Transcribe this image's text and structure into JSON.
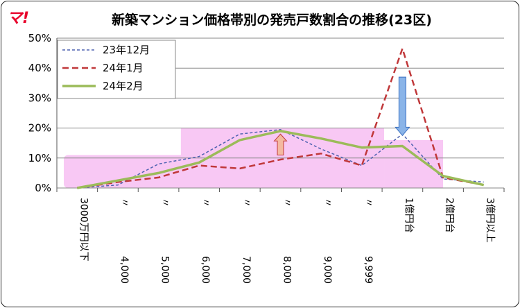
{
  "logo_text": "マ!",
  "chart_data": {
    "type": "line",
    "title": "新築マンション価格帯別の発売戸数割合の推移(23区)",
    "xlabel": "",
    "ylabel": "",
    "categories": [
      "3000万円以下",
      "〃",
      "〃",
      "〃",
      "〃",
      "〃",
      "〃",
      "〃",
      "1億円台",
      "2億円台",
      "3億円以上"
    ],
    "category_values": [
      "",
      "4,000",
      "5,000",
      "6,000",
      "7,000",
      "8,000",
      "9,000",
      "9,999",
      "",
      "",
      ""
    ],
    "ylim": [
      0,
      50
    ],
    "yticks": [
      "0%",
      "10%",
      "20%",
      "30%",
      "40%",
      "50%"
    ],
    "grid": true,
    "legend_position": "top-left",
    "series": [
      {
        "name": "23年12月",
        "color": "#4f62b0",
        "dash": "short",
        "values": [
          0,
          1,
          8,
          10.5,
          18,
          19.5,
          13,
          7.5,
          18,
          3,
          2
        ]
      },
      {
        "name": "24年1月",
        "color": "#c0383a",
        "dash": "long",
        "values": [
          0,
          2,
          3.5,
          7.5,
          6.5,
          9.5,
          11.5,
          7.5,
          46.5,
          3.5,
          1
        ]
      },
      {
        "name": "24年2月",
        "color": "#9bbb59",
        "dash": "solid",
        "values": [
          0,
          2.5,
          5,
          8.5,
          16,
          19,
          16.5,
          13.5,
          14,
          4,
          1
        ]
      }
    ],
    "colors": {
      "highlight": "#f8c8f4",
      "arrow_up": "#f4b9a0",
      "arrow_down": "#8ab4e8",
      "grid": "#888888"
    }
  }
}
